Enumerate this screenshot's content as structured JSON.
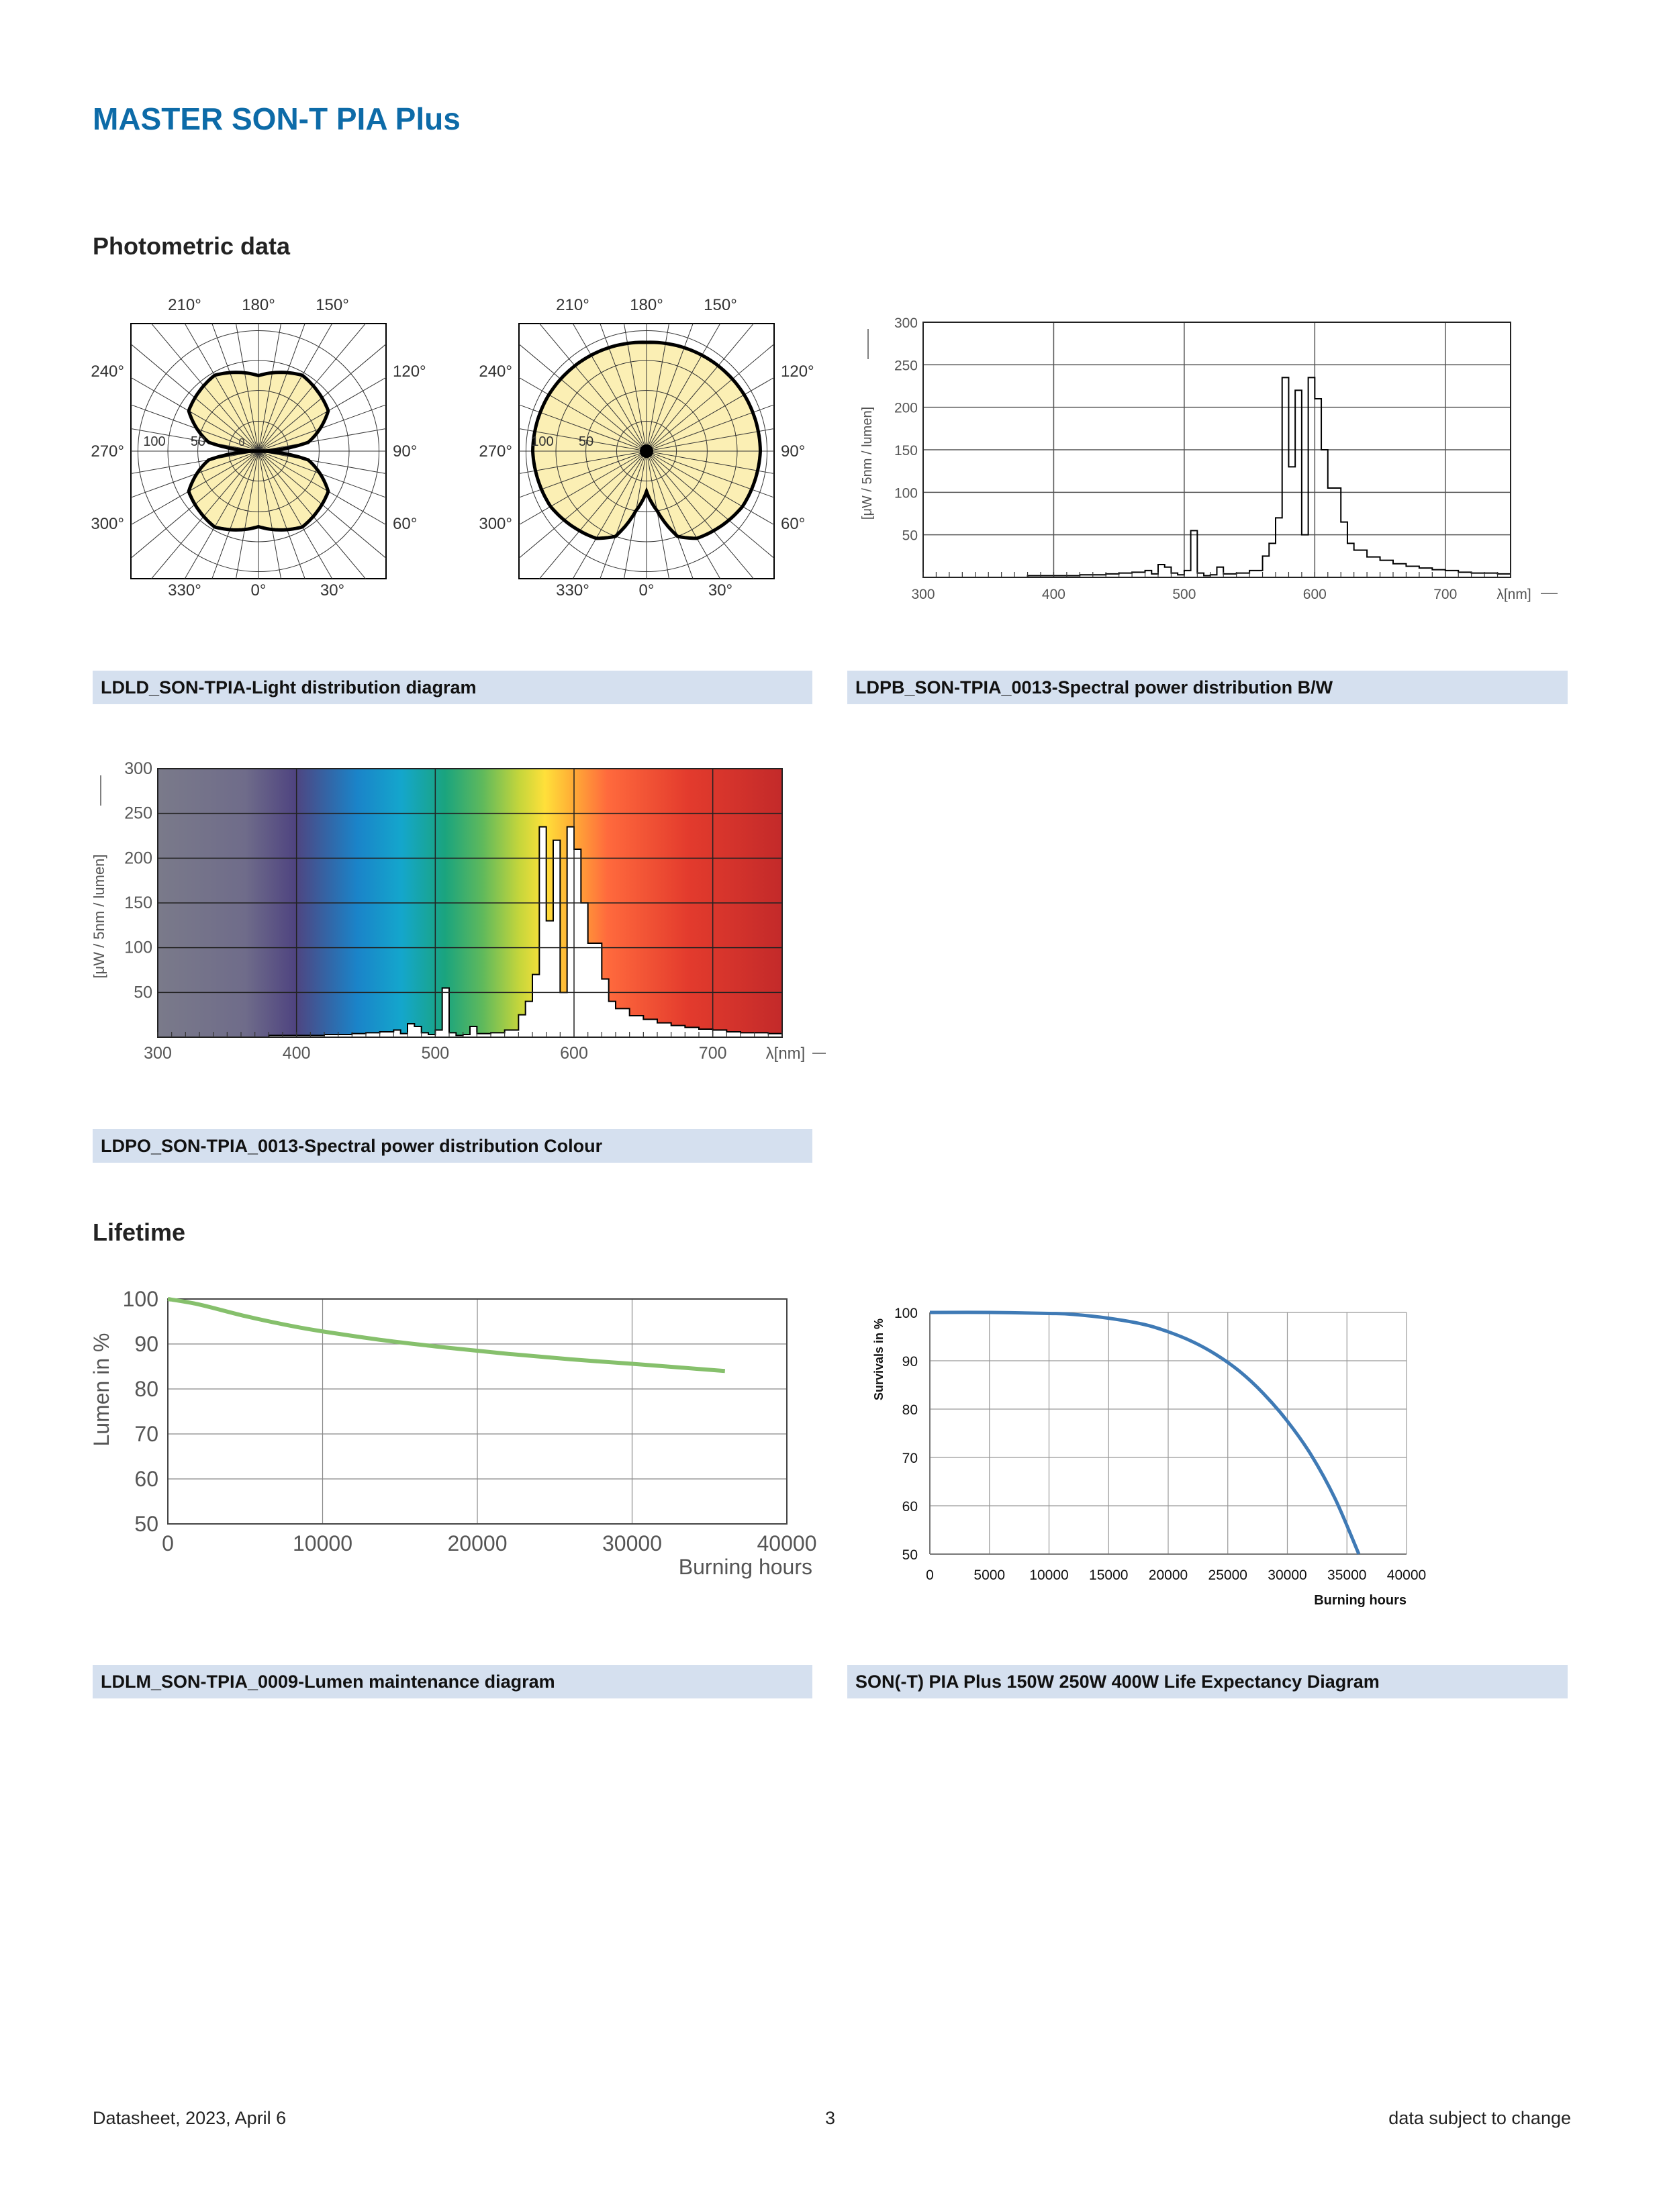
{
  "title": "MASTER SON-T PIA Plus",
  "sections": {
    "photometric": "Photometric data",
    "lifetime": "Lifetime"
  },
  "captions": {
    "ldld": "LDLD_SON-TPIA-Light distribution diagram",
    "ldpb": "LDPB_SON-TPIA_0013-Spectral power distribution B/W",
    "ldpo": "LDPO_SON-TPIA_0013-Spectral power distribution Colour",
    "ldlm": "LDLM_SON-TPIA_0009-Lumen maintenance diagram",
    "life": "SON(-T) PIA Plus 150W 250W 400W Life Expectancy Diagram"
  },
  "footer": {
    "left": "Datasheet, 2023, April 6",
    "center": "3",
    "right": "data subject to change"
  },
  "chart_data": [
    {
      "type": "polar",
      "angle_labels": [
        "210°",
        "180°",
        "150°",
        "240°",
        "120°",
        "270°",
        "90°",
        "300°",
        "60°",
        "330°",
        "0°",
        "30°"
      ],
      "radial_labels": [
        "100",
        "50",
        "0"
      ],
      "series": [
        {
          "angles": [
            0,
            30,
            60,
            80,
            90,
            100,
            120,
            150,
            180,
            210,
            240,
            260,
            270,
            280,
            300,
            330
          ],
          "values": [
            75,
            87,
            80,
            50,
            0,
            50,
            80,
            87,
            75,
            87,
            80,
            50,
            0,
            50,
            80,
            87
          ]
        }
      ]
    },
    {
      "type": "polar",
      "angle_labels": [
        "210°",
        "180°",
        "150°",
        "240°",
        "120°",
        "270°",
        "90°",
        "300°",
        "60°",
        "330°",
        "0°",
        "30°"
      ],
      "radial_labels": [
        "100",
        "50"
      ],
      "series": [
        {
          "angles": [
            0,
            10,
            20,
            30,
            45,
            60,
            90,
            120,
            150,
            180,
            210,
            240,
            270,
            300,
            315,
            330,
            340,
            350
          ],
          "values": [
            40,
            60,
            90,
            100,
            105,
            110,
            113,
            112,
            110,
            108,
            110,
            112,
            113,
            110,
            105,
            100,
            90,
            60
          ]
        }
      ]
    },
    {
      "type": "line",
      "title": "",
      "xlabel": "λ[nm]",
      "ylabel": "[μW / 5nm / lumen]",
      "xlim": [
        300,
        750
      ],
      "ylim": [
        0,
        300
      ],
      "x_ticks": [
        300,
        400,
        500,
        600,
        700
      ],
      "y_ticks": [
        50,
        100,
        150,
        200,
        250,
        300
      ],
      "x": [
        380,
        400,
        420,
        440,
        450,
        460,
        470,
        475,
        480,
        485,
        490,
        495,
        500,
        505,
        510,
        515,
        520,
        525,
        530,
        540,
        550,
        560,
        565,
        570,
        575,
        580,
        585,
        590,
        595,
        600,
        605,
        610,
        615,
        620,
        625,
        630,
        640,
        650,
        660,
        670,
        680,
        690,
        700,
        710,
        720,
        730,
        740,
        745
      ],
      "values": [
        2,
        2,
        3,
        4,
        5,
        6,
        8,
        4,
        15,
        12,
        5,
        3,
        8,
        55,
        5,
        2,
        3,
        12,
        4,
        5,
        8,
        25,
        40,
        70,
        235,
        130,
        220,
        50,
        235,
        210,
        150,
        105,
        105,
        65,
        40,
        32,
        24,
        20,
        16,
        13,
        11,
        9,
        8,
        6,
        5,
        5,
        4,
        4
      ]
    },
    {
      "type": "line",
      "title": "",
      "xlabel": "λ[nm]",
      "ylabel": "[μW / 5nm / lumen]",
      "xlim": [
        300,
        750
      ],
      "ylim": [
        0,
        300
      ],
      "x_ticks": [
        300,
        400,
        500,
        600,
        700
      ],
      "y_ticks": [
        50,
        100,
        150,
        200,
        250,
        300
      ],
      "x": [
        380,
        400,
        420,
        440,
        450,
        460,
        470,
        475,
        480,
        485,
        490,
        495,
        500,
        505,
        510,
        515,
        520,
        525,
        530,
        540,
        550,
        560,
        565,
        570,
        575,
        580,
        585,
        590,
        595,
        600,
        605,
        610,
        615,
        620,
        625,
        630,
        640,
        650,
        660,
        670,
        680,
        690,
        700,
        710,
        720,
        730,
        740,
        745
      ],
      "values": [
        2,
        2,
        3,
        4,
        5,
        6,
        8,
        4,
        15,
        12,
        5,
        3,
        8,
        55,
        5,
        2,
        3,
        12,
        4,
        5,
        8,
        25,
        40,
        70,
        235,
        130,
        220,
        50,
        235,
        210,
        150,
        105,
        105,
        65,
        40,
        32,
        24,
        20,
        16,
        13,
        11,
        9,
        8,
        6,
        5,
        5,
        4,
        4
      ]
    },
    {
      "type": "line",
      "title": "",
      "xlabel": "Burning hours",
      "ylabel": "Lumen in %",
      "xlim": [
        0,
        40000
      ],
      "ylim": [
        50,
        100
      ],
      "x_ticks": [
        0,
        10000,
        20000,
        30000,
        40000
      ],
      "y_ticks": [
        50,
        60,
        70,
        80,
        90,
        100
      ],
      "x": [
        0,
        2000,
        5000,
        8000,
        10000,
        14000,
        18000,
        22000,
        26000,
        30000,
        33000,
        36000
      ],
      "values": [
        100,
        98.8,
        96.2,
        94,
        92.8,
        90.8,
        89.2,
        87.8,
        86.6,
        85.6,
        84.8,
        84
      ],
      "colors": {
        "line": "#86c06c"
      }
    },
    {
      "type": "line",
      "title": "",
      "xlabel": "Burning hours",
      "ylabel": "Survivals in %",
      "xlim": [
        0,
        40000
      ],
      "ylim": [
        50,
        100
      ],
      "x_ticks": [
        0,
        5000,
        10000,
        15000,
        20000,
        25000,
        30000,
        35000,
        40000
      ],
      "y_ticks": [
        50,
        60,
        70,
        80,
        90,
        100
      ],
      "x": [
        0,
        5000,
        10000,
        12000,
        15000,
        18000,
        20000,
        22000,
        24000,
        26000,
        28000,
        30000,
        32000,
        34000,
        36000
      ],
      "values": [
        100,
        100,
        99.8,
        99.6,
        98.8,
        97.5,
        96,
        94,
        91.3,
        87.8,
        83.2,
        77.5,
        70.5,
        61.5,
        50
      ],
      "colors": {
        "line": "#3f7ab5"
      }
    }
  ]
}
